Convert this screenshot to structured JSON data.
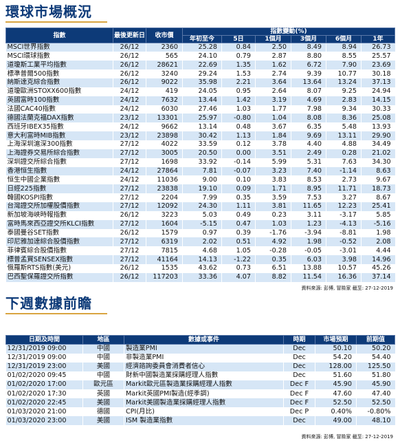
{
  "section1": {
    "title": "環球市場概況",
    "headers": {
      "index": "指數",
      "last_update": "最後更新日",
      "close": "收市價",
      "change_group": "指數變動(%)",
      "ytd": "年初至今",
      "d5": "5日",
      "m1": "1個月",
      "m3": "3個月",
      "m6": "6個月",
      "y1": "1年"
    },
    "rows": [
      [
        "MSCI世界指數",
        "26/12",
        "2360",
        "25.28",
        "0.84",
        "2.50",
        "8.49",
        "8.94",
        "26.73"
      ],
      [
        "MSCI環球指數",
        "26/12",
        "565",
        "24.10",
        "0.79",
        "2.87",
        "8.80",
        "8.55",
        "25.57"
      ],
      [
        "道瓊斯工業平均指數",
        "26/12",
        "28621",
        "22.69",
        "1.35",
        "1.62",
        "6.72",
        "7.90",
        "23.69"
      ],
      [
        "標準普爾500指數",
        "26/12",
        "3240",
        "29.24",
        "1.53",
        "2.74",
        "9.39",
        "10.77",
        "30.18"
      ],
      [
        "納斯達克綜合指數",
        "26/12",
        "9022",
        "35.98",
        "2.21",
        "3.64",
        "13.64",
        "13.24",
        "37.13"
      ],
      [
        "道瓊歐洲STOXX600指數",
        "24/12",
        "419",
        "24.05",
        "0.95",
        "2.64",
        "8.07",
        "9.25",
        "24.94"
      ],
      [
        "英國富時100指數",
        "24/12",
        "7632",
        "13.44",
        "1.42",
        "3.19",
        "4.69",
        "2.83",
        "14.15"
      ],
      [
        "法國CAC40指數",
        "24/12",
        "6030",
        "27.46",
        "1.03",
        "1.77",
        "7.98",
        "9.34",
        "30.33"
      ],
      [
        "德國法蘭克福DAX指數",
        "23/12",
        "13301",
        "25.97",
        "-0.80",
        "1.04",
        "8.08",
        "8.36",
        "25.08"
      ],
      [
        "西班牙IBEX35指數",
        "24/12",
        "9662",
        "13.14",
        "0.48",
        "3.67",
        "6.35",
        "5.48",
        "13.93"
      ],
      [
        "意大利富時MIB指數",
        "23/12",
        "23898",
        "30.42",
        "1.13",
        "1.84",
        "9.69",
        "13.11",
        "29.90"
      ],
      [
        "上海深圳滬深300指數",
        "27/12",
        "4022",
        "33.59",
        "0.12",
        "3.78",
        "4.40",
        "4.88",
        "34.49"
      ],
      [
        "上海證券交易所綜合指數",
        "27/12",
        "3005",
        "20.50",
        "0.00",
        "3.51",
        "2.49",
        "0.28",
        "21.02"
      ],
      [
        "深圳證交所綜合指數",
        "27/12",
        "1698",
        "33.92",
        "-0.14",
        "5.99",
        "5.31",
        "7.63",
        "34.30"
      ],
      [
        "香港恒生指數",
        "24/12",
        "27864",
        "7.81",
        "-0.07",
        "3.23",
        "7.40",
        "-1.14",
        "8.63"
      ],
      [
        "恒生中國企業指數",
        "24/12",
        "11036",
        "9.00",
        "0.10",
        "3.83",
        "8.53",
        "2.73",
        "9.67"
      ],
      [
        "日經225指數",
        "27/12",
        "23838",
        "19.10",
        "0.09",
        "1.71",
        "8.95",
        "11.71",
        "18.73"
      ],
      [
        "韓國KOSPI指數",
        "27/12",
        "2204",
        "7.99",
        "0.35",
        "3.59",
        "7.53",
        "3.27",
        "8.67"
      ],
      [
        "台灣證交所加權股價指數",
        "27/12",
        "12092",
        "24.30",
        "1.11",
        "3.81",
        "11.65",
        "12.23",
        "25.41"
      ],
      [
        "新加坡海峽時報指數",
        "26/12",
        "3223",
        "5.03",
        "0.49",
        "0.23",
        "3.11",
        "-3.17",
        "5.85"
      ],
      [
        "富時馬來西亞證交所KLCI指數",
        "27/12",
        "1604",
        "-5.15",
        "0.47",
        "1.03",
        "1.23",
        "-4.13",
        "-5.16"
      ],
      [
        "泰國曼谷SET指數",
        "26/12",
        "1579",
        "0.97",
        "0.39",
        "-1.76",
        "-3.94",
        "-8.81",
        "1.98"
      ],
      [
        "印尼雅加達綜合股價指數",
        "27/12",
        "6319",
        "2.02",
        "0.51",
        "4.92",
        "1.98",
        "-0.52",
        "2.08"
      ],
      [
        "菲律賓綜合股價指數",
        "27/12",
        "7815",
        "4.68",
        "1.05",
        "-0.28",
        "-0.05",
        "-3.01",
        "4.44"
      ],
      [
        "標普孟買SENSEX指數",
        "27/12",
        "41164",
        "14.13",
        "-1.22",
        "0.35",
        "6.03",
        "3.98",
        "14.96"
      ],
      [
        "俄羅斯RTS指數(美元)",
        "26/12",
        "1535",
        "43.62",
        "0.73",
        "6.51",
        "13.88",
        "10.57",
        "45.26"
      ],
      [
        "巴西聖保羅證交所指數",
        "26/12",
        "117203",
        "33.36",
        "4.07",
        "8.82",
        "11.54",
        "16.36",
        "37.14"
      ]
    ],
    "source": "資料來源: 彭博, 冒險家 截至: 27-12-2019"
  },
  "section2": {
    "title": "下週數據前瞻",
    "headers": {
      "datetime": "日期及時間",
      "region": "地區",
      "event": "數據或事件",
      "period": "時期",
      "forecast": "市場預期",
      "previous": "前期值"
    },
    "rows": [
      [
        "12/31/2019 09:00",
        "中國",
        "製造業PMI",
        "Dec",
        "50.10",
        "50.20"
      ],
      [
        "12/31/2019 09:00",
        "中國",
        "非製造業PMI",
        "Dec",
        "54.20",
        "54.40"
      ],
      [
        "12/31/2019 23:00",
        "美國",
        "經濟諮詢委員會消費者信心",
        "Dec",
        "128.00",
        "125.50"
      ],
      [
        "01/02/2020 09:45",
        "中國",
        "財新中國製造業採購經理人指數",
        "Dec",
        "51.60",
        "51.80"
      ],
      [
        "01/02/2020 17:00",
        "歐元區",
        "Markit歐元區製造業採購經理人指數",
        "Dec F",
        "45.90",
        "45.90"
      ],
      [
        "01/02/2020 17:30",
        "英國",
        "Markit英國PMI製造(經季調)",
        "Dec F",
        "47.60",
        "47.40"
      ],
      [
        "01/02/2020 22:45",
        "美國",
        "Markit美國製造業採購經理人指數",
        "Dec F",
        "52.50",
        "52.50"
      ],
      [
        "01/03/2020 21:00",
        "德國",
        "CPI(月比)",
        "Dec P",
        "0.40%",
        "-0.80%"
      ],
      [
        "01/03/2020 23:00",
        "美國",
        "ISM 製造業指數",
        "Dec",
        "49.00",
        "48.10"
      ]
    ],
    "source": "資料來源: 彭博, 冒險家 截至: 27-12-2019"
  }
}
